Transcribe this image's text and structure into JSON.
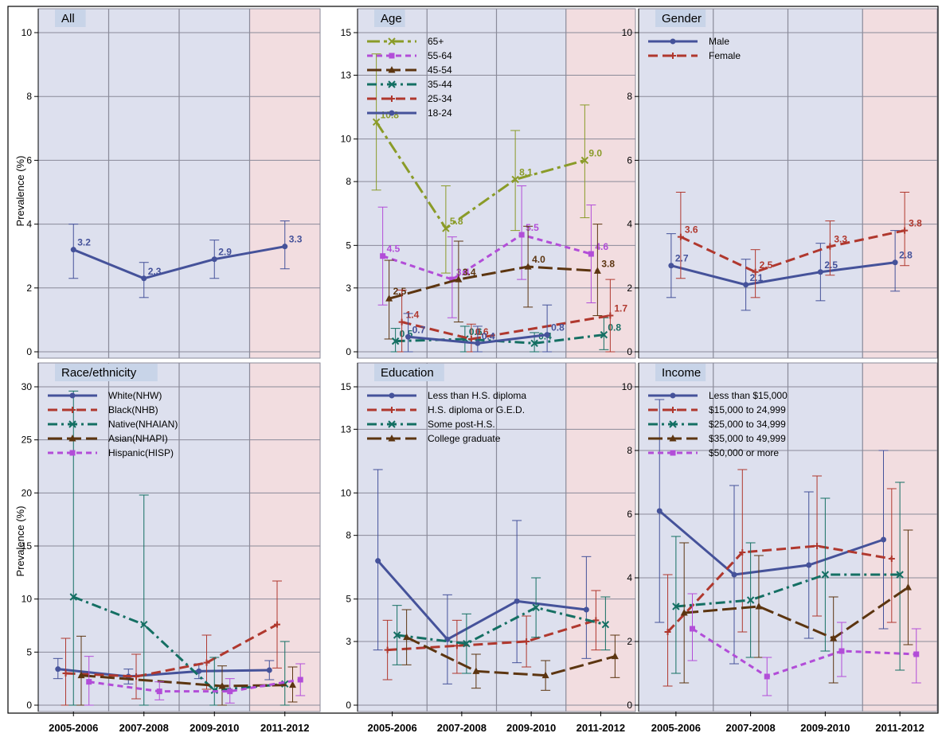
{
  "ylabel": "Prevalence (%)",
  "x_categories": [
    "2005-2006",
    "2007-2008",
    "2009-2010",
    "2011-2012"
  ],
  "colors": {
    "panel_bg": "#dde0ee",
    "highlight_bg": "#f2dde0",
    "grid": "#8a8a99",
    "header_bg": "#c8d4e8",
    "blue": "#45529a",
    "red": "#b0382e",
    "teal": "#146f63",
    "brown": "#5c3510",
    "purple": "#b24dd8",
    "olive": "#8a9b28"
  },
  "chart_data": [
    {
      "type": "line",
      "title": "All",
      "ylim": [
        0,
        10
      ],
      "yticks": [
        0,
        2,
        4,
        6,
        8,
        10
      ],
      "series": [
        {
          "style": "blue",
          "values": [
            3.2,
            2.3,
            2.9,
            3.3
          ],
          "lower": [
            2.3,
            1.7,
            2.3,
            2.6
          ],
          "upper": [
            4.0,
            2.8,
            3.5,
            4.1
          ],
          "labels": [
            "3.2",
            "2.3",
            "2.9",
            "3.3"
          ]
        }
      ]
    },
    {
      "type": "line",
      "title": "Age",
      "ylim": [
        0,
        15
      ],
      "yticks": [
        0,
        3,
        5,
        8,
        10,
        13,
        15
      ],
      "legend": "top-left",
      "series": [
        {
          "name": "65+",
          "style": "olive",
          "values": [
            10.8,
            5.8,
            8.1,
            9.0
          ],
          "lower": [
            7.6,
            3.7,
            5.7,
            6.3
          ],
          "upper": [
            14.0,
            7.8,
            10.4,
            11.6
          ],
          "labels": [
            "10.8",
            "5.8",
            "8.1",
            "9.0"
          ]
        },
        {
          "name": "55-64",
          "style": "purple",
          "values": [
            4.5,
            3.4,
            5.5,
            4.6
          ],
          "lower": [
            2.2,
            1.6,
            3.4,
            2.3
          ],
          "upper": [
            6.8,
            5.4,
            7.8,
            6.9
          ],
          "labels": [
            "4.5",
            "3.4",
            "5.5",
            "4.6"
          ]
        },
        {
          "name": "45-54",
          "style": "brown",
          "values": [
            2.5,
            3.4,
            4.0,
            3.8
          ],
          "lower": [
            0.6,
            1.4,
            2.1,
            1.7
          ],
          "upper": [
            4.3,
            5.2,
            5.9,
            6.0
          ],
          "labels": [
            "2.5",
            "3.4",
            "4.0",
            "3.8"
          ]
        },
        {
          "name": "35-44",
          "style": "teal",
          "values": [
            0.5,
            0.6,
            0.4,
            0.8
          ],
          "lower": [
            0.0,
            0.0,
            0.0,
            0.1
          ],
          "upper": [
            1.1,
            1.2,
            0.9,
            1.6
          ],
          "labels": [
            "0.5",
            "0.6",
            "0.4",
            "0.8"
          ]
        },
        {
          "name": "25-34",
          "style": "red",
          "values": [
            1.4,
            0.6,
            null,
            1.7
          ],
          "lower": [
            0.0,
            0.0,
            null,
            0.0
          ],
          "upper": [
            2.9,
            1.3,
            null,
            3.4
          ],
          "labels": [
            "1.4",
            "0.6",
            "",
            "1.7"
          ]
        },
        {
          "name": "18-24",
          "style": "blue",
          "values": [
            0.7,
            0.4,
            0.8,
            null
          ],
          "lower": [
            0.0,
            0.0,
            0.0,
            null
          ],
          "upper": [
            1.8,
            1.2,
            2.2,
            null
          ],
          "labels": [
            "0.7",
            "0.4",
            "0.8",
            ""
          ]
        }
      ]
    },
    {
      "type": "line",
      "title": "Gender",
      "ylim": [
        0,
        10
      ],
      "yticks": [
        0,
        2,
        4,
        6,
        8,
        10
      ],
      "legend": "top-left",
      "series": [
        {
          "name": "Male",
          "style": "blue",
          "values": [
            2.7,
            2.1,
            2.5,
            2.8
          ],
          "lower": [
            1.7,
            1.3,
            1.6,
            1.9
          ],
          "upper": [
            3.7,
            2.9,
            3.4,
            3.8
          ],
          "labels": [
            "2.7",
            "2.1",
            "2.5",
            "2.8"
          ]
        },
        {
          "name": "Female",
          "style": "red",
          "values": [
            3.6,
            2.5,
            3.3,
            3.8
          ],
          "lower": [
            2.3,
            1.7,
            2.4,
            2.7
          ],
          "upper": [
            5.0,
            3.2,
            4.1,
            5.0
          ],
          "labels": [
            "3.6",
            "2.5",
            "3.3",
            "3.8"
          ]
        }
      ]
    },
    {
      "type": "line",
      "title": "Race/ethnicity",
      "ylim": [
        0,
        30
      ],
      "yticks": [
        0,
        5,
        10,
        15,
        20,
        25,
        30
      ],
      "legend": "top-left",
      "series": [
        {
          "name": "White(NHW)",
          "style": "blue",
          "values": [
            3.4,
            2.7,
            3.2,
            3.3
          ],
          "lower": [
            2.5,
            2.0,
            2.5,
            2.4
          ],
          "upper": [
            4.4,
            3.4,
            3.9,
            4.2
          ],
          "labels": []
        },
        {
          "name": "Black(NHB)",
          "style": "red",
          "values": [
            3.0,
            2.7,
            4.0,
            7.6
          ],
          "lower": [
            0.0,
            0.6,
            1.5,
            3.5
          ],
          "upper": [
            6.3,
            4.8,
            6.6,
            11.7
          ],
          "labels": []
        },
        {
          "name": "Native(NHAIAN)",
          "style": "teal",
          "values": [
            10.2,
            7.6,
            1.4,
            2.0
          ],
          "lower": [
            0.0,
            0.0,
            0.0,
            0.0
          ],
          "upper": [
            29.6,
            19.8,
            4.5,
            6.0
          ],
          "labels": []
        },
        {
          "name": "Asian(NHAPI)",
          "style": "brown",
          "values": [
            2.8,
            null,
            1.8,
            1.9
          ],
          "lower": [
            0.0,
            null,
            0.0,
            0.3
          ],
          "upper": [
            6.5,
            null,
            3.7,
            3.6
          ],
          "labels": []
        },
        {
          "name": "Hispanic(HISP)",
          "style": "purple",
          "values": [
            2.2,
            1.3,
            1.3,
            2.4
          ],
          "lower": [
            0.0,
            0.5,
            0.2,
            0.9
          ],
          "upper": [
            4.6,
            2.2,
            2.5,
            3.9
          ],
          "labels": []
        }
      ]
    },
    {
      "type": "line",
      "title": "Education",
      "ylim": [
        0,
        15
      ],
      "yticks": [
        0,
        3,
        5,
        8,
        10,
        13,
        15
      ],
      "legend": "top-left",
      "series": [
        {
          "name": "Less than H.S. diploma",
          "style": "blue",
          "values": [
            6.8,
            3.1,
            4.9,
            4.5
          ],
          "lower": [
            2.6,
            1.0,
            2.0,
            2.2
          ],
          "upper": [
            11.1,
            5.2,
            8.7,
            7.0
          ],
          "labels": []
        },
        {
          "name": "H.S. diploma or G.E.D.",
          "style": "red",
          "values": [
            2.6,
            2.8,
            3.0,
            4.0
          ],
          "lower": [
            1.2,
            1.5,
            1.8,
            2.6
          ],
          "upper": [
            4.0,
            4.0,
            4.2,
            5.4
          ],
          "labels": []
        },
        {
          "name": "Some post-H.S.",
          "style": "teal",
          "values": [
            3.3,
            2.9,
            4.6,
            3.8
          ],
          "lower": [
            1.9,
            1.5,
            3.2,
            2.6
          ],
          "upper": [
            4.7,
            4.3,
            6.0,
            5.1
          ],
          "labels": []
        },
        {
          "name": "College graduate",
          "style": "brown",
          "values": [
            3.2,
            1.6,
            1.4,
            2.3
          ],
          "lower": [
            1.9,
            0.8,
            0.7,
            1.3
          ],
          "upper": [
            4.5,
            2.4,
            2.1,
            3.3
          ],
          "labels": []
        }
      ]
    },
    {
      "type": "line",
      "title": "Income",
      "ylim": [
        0,
        10
      ],
      "yticks": [
        0,
        2,
        4,
        6,
        8,
        10
      ],
      "legend": "top-left",
      "series": [
        {
          "name": "Less than $15,000",
          "style": "blue",
          "values": [
            6.1,
            4.1,
            4.4,
            5.2
          ],
          "lower": [
            2.6,
            1.3,
            2.1,
            2.4
          ],
          "upper": [
            9.6,
            6.9,
            6.7,
            8.0
          ],
          "labels": []
        },
        {
          "name": "$15,000 to 24,999",
          "style": "red",
          "values": [
            2.3,
            4.8,
            5.0,
            4.6
          ],
          "lower": [
            0.6,
            2.3,
            2.8,
            2.6
          ],
          "upper": [
            4.1,
            7.4,
            7.2,
            6.8
          ],
          "labels": []
        },
        {
          "name": "$25,000 to 34,999",
          "style": "teal",
          "values": [
            3.1,
            3.3,
            4.1,
            4.1
          ],
          "lower": [
            1.0,
            1.5,
            1.7,
            1.1
          ],
          "upper": [
            5.3,
            5.1,
            6.5,
            7.0
          ],
          "labels": []
        },
        {
          "name": "$35,000 to 49,999",
          "style": "brown",
          "values": [
            2.9,
            3.1,
            2.1,
            3.7
          ],
          "lower": [
            0.7,
            1.5,
            0.7,
            1.9
          ],
          "upper": [
            5.1,
            4.7,
            3.4,
            5.5
          ],
          "labels": []
        },
        {
          "name": "$50,000 or more",
          "style": "purple",
          "values": [
            2.4,
            0.9,
            1.7,
            1.6
          ],
          "lower": [
            1.4,
            0.3,
            0.9,
            0.7
          ],
          "upper": [
            3.5,
            1.5,
            2.6,
            2.4
          ],
          "labels": []
        }
      ]
    }
  ]
}
